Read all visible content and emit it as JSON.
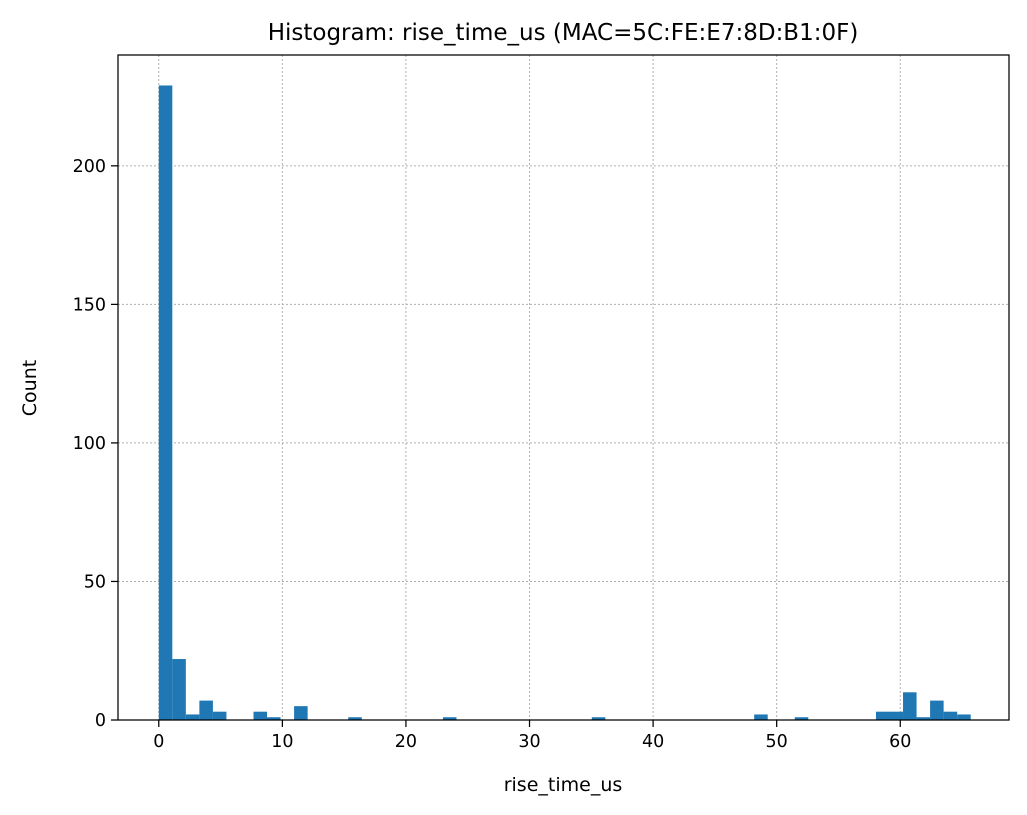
{
  "chart_data": {
    "type": "bar",
    "title": "Histogram: rise_time_us (MAC=5C:FE:E7:8D:B1:0F)",
    "xlabel": "rise_time_us",
    "ylabel": "Count",
    "xlim": [
      -3.3,
      68.8
    ],
    "ylim": [
      0,
      240
    ],
    "grid": true,
    "bar_color": "#1f77b4",
    "bin_width": 1.095,
    "bin_start": 0,
    "counts": [
      229,
      22,
      2,
      7,
      3,
      0,
      0,
      3,
      1,
      0,
      5,
      0,
      0,
      0,
      1,
      0,
      0,
      0,
      0,
      0,
      0,
      1,
      0,
      0,
      0,
      0,
      0,
      0,
      0,
      0,
      0,
      0,
      1,
      0,
      0,
      0,
      0,
      0,
      0,
      0,
      0,
      0,
      0,
      0,
      2,
      0,
      0,
      1,
      0,
      0,
      0,
      0,
      0,
      3,
      3,
      10,
      1,
      7,
      3,
      2
    ],
    "x_ticks": [
      0,
      10,
      20,
      30,
      40,
      50,
      60
    ],
    "y_ticks": [
      0,
      50,
      100,
      150,
      200
    ]
  }
}
